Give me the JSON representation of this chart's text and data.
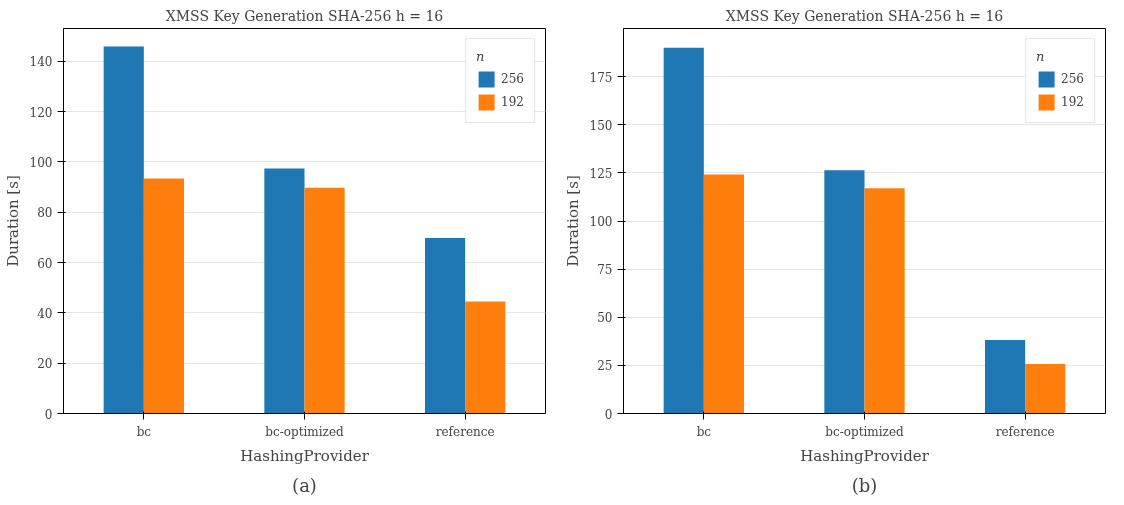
{
  "chart_data": [
    {
      "type": "bar",
      "title": "XMSS Key Generation SHA-256 h = 16",
      "xlabel": "HashingProvider",
      "ylabel": "Duration [s]",
      "legend_title": "n",
      "categories": [
        "bc",
        "bc-optimized",
        "reference"
      ],
      "series": [
        {
          "name": "256",
          "color": "#1f77b4",
          "values": [
            145.8,
            97.4,
            69.7
          ]
        },
        {
          "name": "192",
          "color": "#ff7f0e",
          "values": [
            93.4,
            89.7,
            44.5
          ]
        }
      ],
      "ylim": [
        0,
        153
      ],
      "yticks": [
        0,
        20,
        40,
        60,
        80,
        100,
        120,
        140
      ],
      "grid": "y",
      "legend": "top right",
      "annotations": [
        "(a)"
      ]
    },
    {
      "type": "bar",
      "title": "XMSS Key Generation SHA-256 h = 16",
      "xlabel": "HashingProvider",
      "ylabel": "Duration [s]",
      "legend_title": "n",
      "categories": [
        "bc",
        "bc-optimized",
        "reference"
      ],
      "series": [
        {
          "name": "256",
          "color": "#1f77b4",
          "values": [
            190,
            126.3,
            38.2
          ]
        },
        {
          "name": "192",
          "color": "#ff7f0e",
          "values": [
            124.1,
            117,
            25.7
          ]
        }
      ],
      "ylim": [
        0,
        200
      ],
      "yticks": [
        0,
        25,
        50,
        75,
        100,
        125,
        150,
        175
      ],
      "grid": "y",
      "legend": "top right",
      "annotations": [
        "(b)"
      ]
    }
  ]
}
